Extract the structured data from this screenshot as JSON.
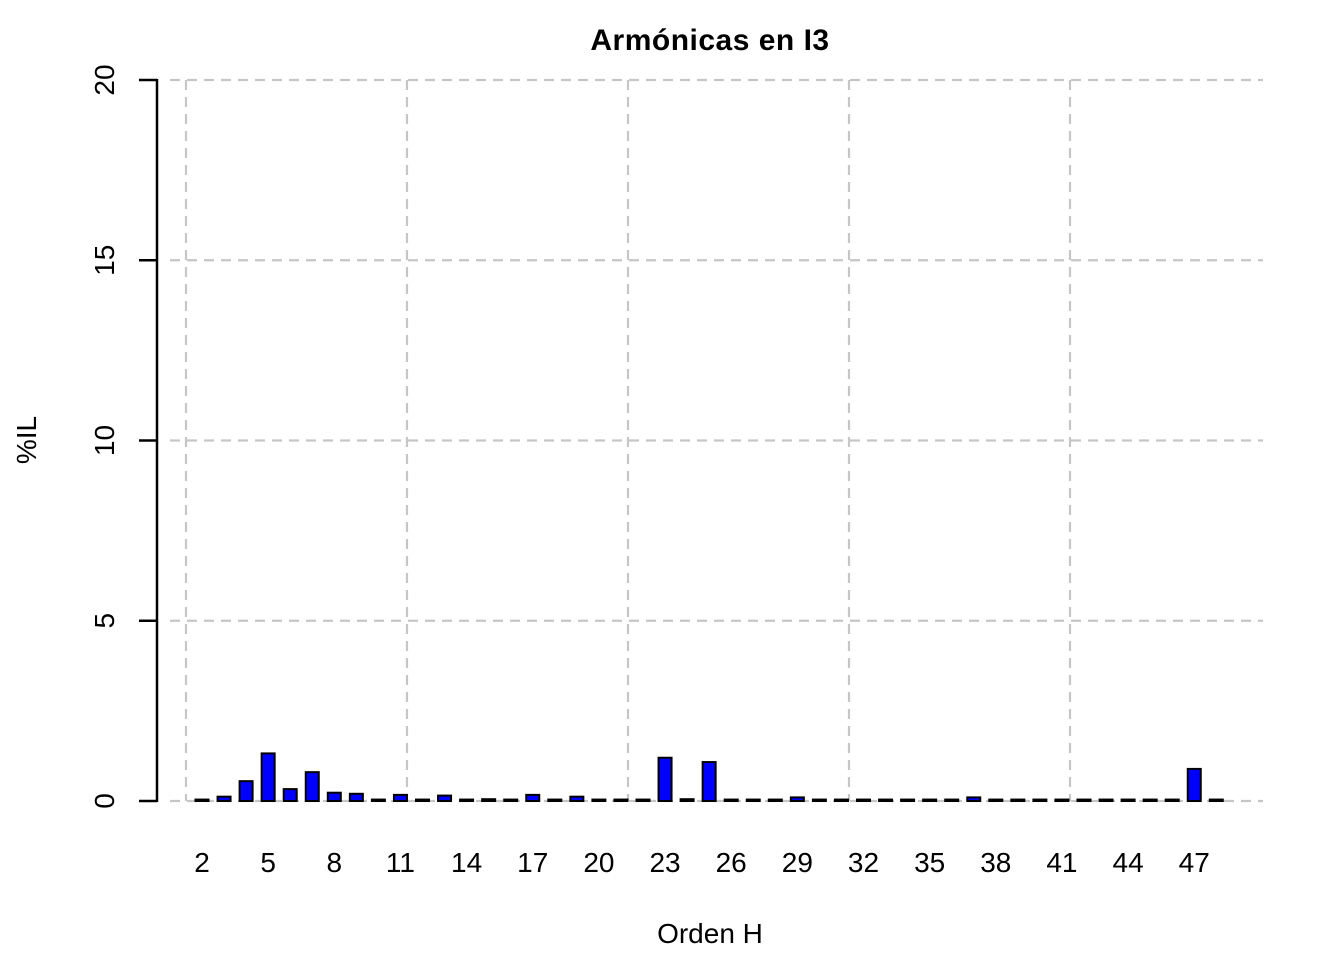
{
  "chart_data": {
    "type": "bar",
    "title": "Armónicas en I3",
    "xlabel": "Orden H",
    "ylabel": "%IL",
    "x": [
      2,
      3,
      4,
      5,
      6,
      7,
      8,
      9,
      10,
      11,
      12,
      13,
      14,
      15,
      16,
      17,
      18,
      19,
      20,
      21,
      22,
      23,
      24,
      25,
      26,
      27,
      28,
      29,
      30,
      31,
      32,
      33,
      34,
      35,
      36,
      37,
      38,
      39,
      40,
      41,
      42,
      43,
      44,
      45,
      46,
      47,
      48
    ],
    "values": [
      0.04,
      0.12,
      0.55,
      1.32,
      0.33,
      0.8,
      0.23,
      0.2,
      0.04,
      0.17,
      0.04,
      0.15,
      0.04,
      0.05,
      0.04,
      0.17,
      0.04,
      0.12,
      0.04,
      0.04,
      0.04,
      1.2,
      0.05,
      1.08,
      0.04,
      0.04,
      0.04,
      0.1,
      0.04,
      0.04,
      0.04,
      0.04,
      0.04,
      0.04,
      0.04,
      0.1,
      0.04,
      0.04,
      0.04,
      0.04,
      0.04,
      0.04,
      0.04,
      0.04,
      0.04,
      0.89,
      0.04
    ],
    "xticks": [
      2,
      5,
      8,
      11,
      14,
      17,
      20,
      23,
      26,
      29,
      32,
      35,
      38,
      41,
      44,
      47
    ],
    "yticks": [
      0,
      5,
      10,
      15,
      20
    ],
    "ylim": [
      0,
      20
    ],
    "grid": "dashed",
    "legend": "none",
    "bar_color": "#0000FF",
    "bar_border_color": "#000000",
    "grid_color": "#C6C6C6",
    "axis_color": "#000000",
    "background_color": "#FFFFFF"
  }
}
